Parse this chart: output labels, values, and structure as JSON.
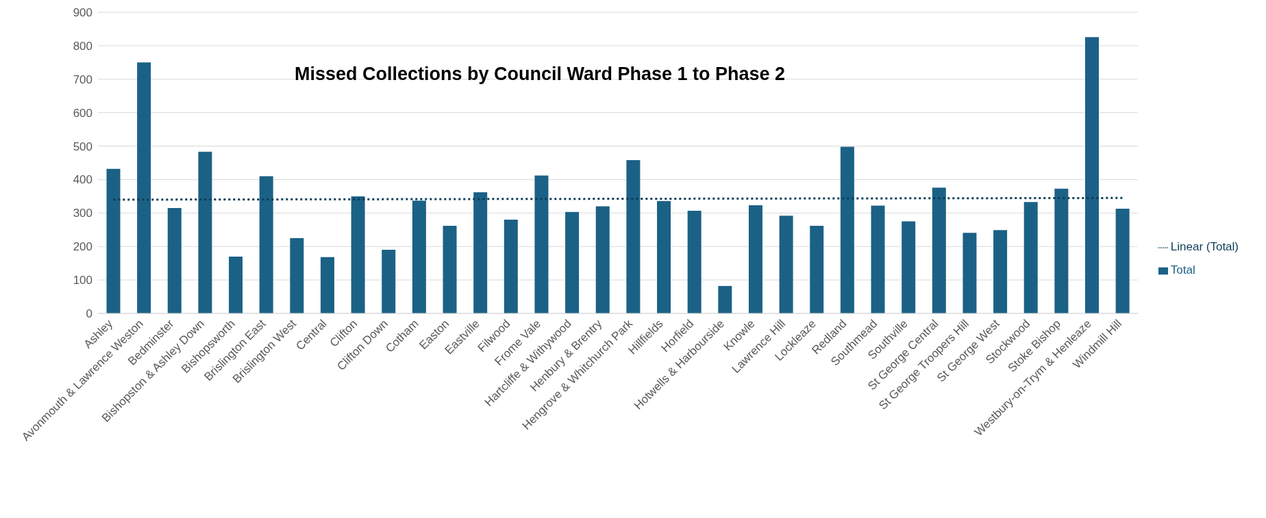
{
  "chart_data": {
    "type": "bar",
    "title": "Missed Collections by Council Ward Phase 1 to Phase 2",
    "categories": [
      "Ashley",
      "Avonmouth & Lawrence Weston",
      "Bedminster",
      "Bishopston & Ashley Down",
      "Bishopsworth",
      "Brislington East",
      "Brislington West",
      "Central",
      "Clifton",
      "Clifton Down",
      "Cotham",
      "Easton",
      "Eastville",
      "Filwood",
      "Frome Vale",
      "Hartcliffe & Withywood",
      "Henbury & Brentry",
      "Hengrove & Whitchurch Park",
      "Hillfields",
      "Horfield",
      "Hotwells & Harbourside",
      "Knowle",
      "Lawrence Hill",
      "Lockleaze",
      "Redland",
      "Southmead",
      "Southville",
      "St George Central",
      "St George Troopers Hill",
      "St George West",
      "Stockwood",
      "Stoke Bishop",
      "Westbury-on-Trym & Henleaze",
      "Windmill Hill"
    ],
    "series": [
      {
        "name": "Total",
        "color": "#1b6186",
        "values": [
          432,
          750,
          315,
          483,
          170,
          410,
          225,
          168,
          350,
          190,
          337,
          262,
          362,
          280,
          412,
          303,
          320,
          458,
          336,
          307,
          82,
          323,
          292,
          262,
          498,
          322,
          275,
          376,
          241,
          249,
          333,
          373,
          826,
          313
        ]
      },
      {
        "name": "Linear (Total)",
        "type": "line",
        "color": "#0c3d58",
        "line_style": "dotted",
        "x": [
          "Ashley",
          "Windmill Hill"
        ],
        "values": [
          340,
          345
        ]
      }
    ],
    "ylim": [
      0,
      900
    ],
    "yticks": [
      0,
      100,
      200,
      300,
      400,
      500,
      600,
      700,
      800,
      900
    ],
    "grid": "y",
    "legend": "right"
  }
}
